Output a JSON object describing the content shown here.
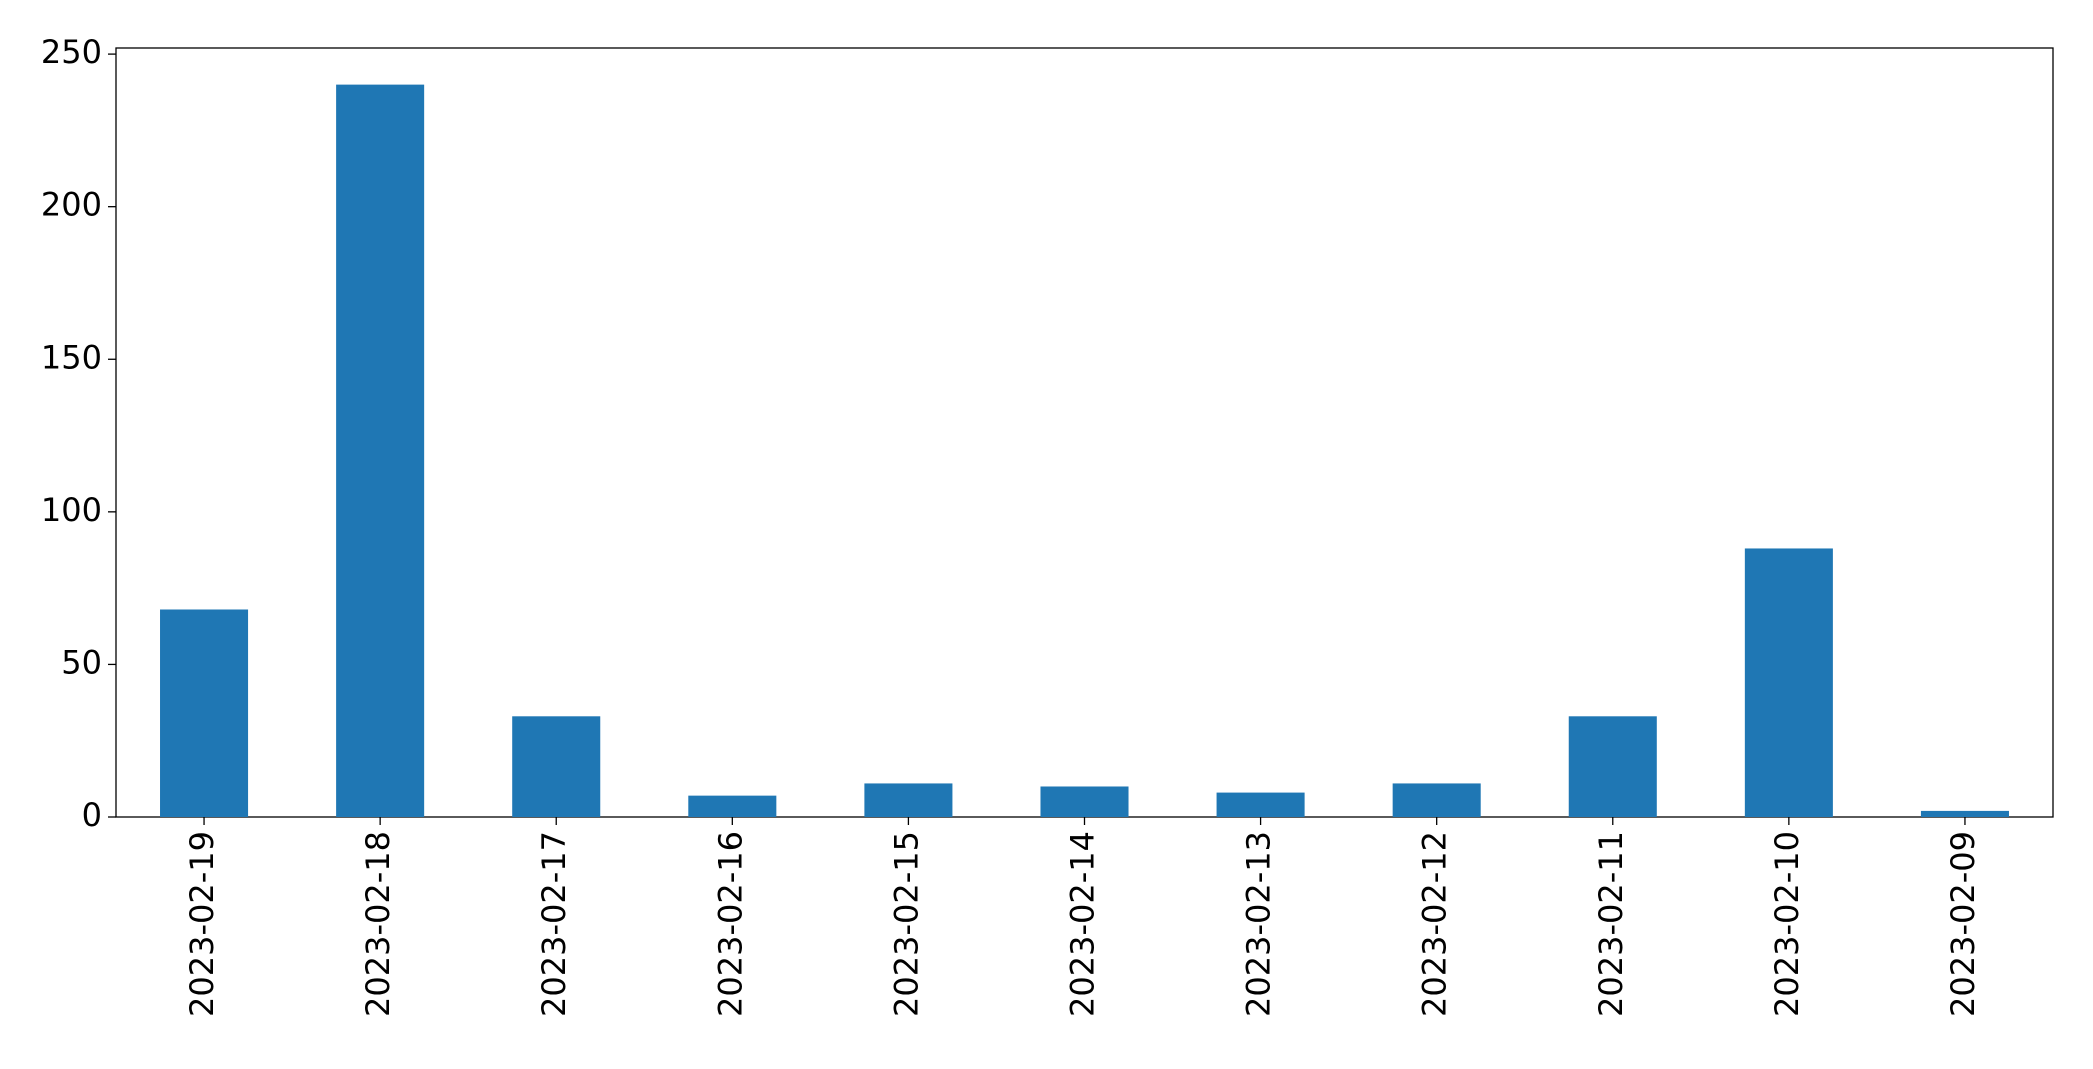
{
  "chart_data": {
    "type": "bar",
    "categories": [
      "2023-02-19",
      "2023-02-18",
      "2023-02-17",
      "2023-02-16",
      "2023-02-15",
      "2023-02-14",
      "2023-02-13",
      "2023-02-12",
      "2023-02-11",
      "2023-02-10",
      "2023-02-09"
    ],
    "values": [
      68,
      240,
      33,
      7,
      11,
      10,
      8,
      11,
      33,
      88,
      2
    ],
    "color": "#1f77b4",
    "ylim": [
      0,
      252
    ],
    "yticks": [
      0,
      50,
      100,
      150,
      200,
      250
    ],
    "grid": false
  }
}
